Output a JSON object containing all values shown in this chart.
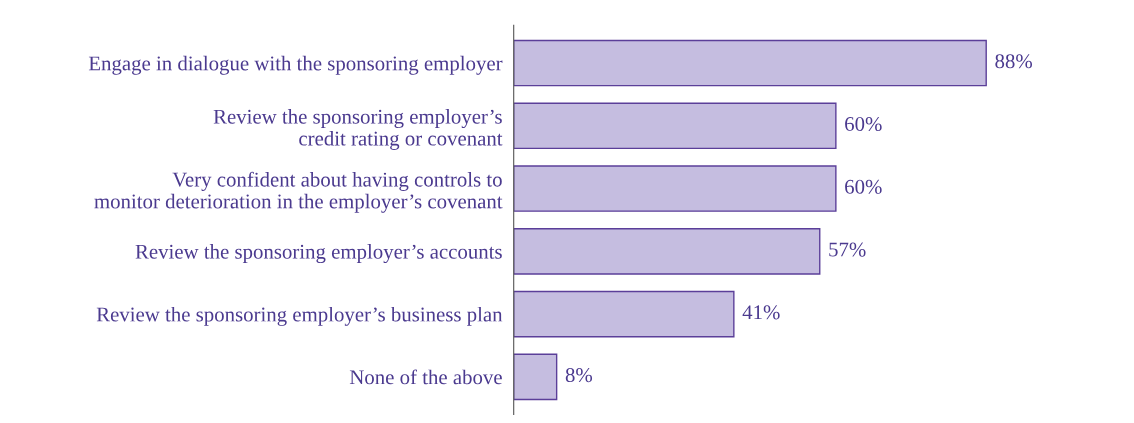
{
  "chart_data": {
    "type": "bar",
    "orientation": "horizontal",
    "categories": [
      "Engage in dialogue with the sponsoring employer",
      "Review the sponsoring employer’s\ncredit rating or covenant",
      "Very confident about having controls to\nmonitor deterioration in the employer’s covenant",
      "Review the sponsoring employer’s accounts",
      "Review the sponsoring employer’s business plan",
      "None of the above"
    ],
    "values": [
      88,
      60,
      60,
      57,
      41,
      8
    ],
    "value_labels": [
      "88%",
      "60%",
      "60%",
      "57%",
      "41%",
      "8%"
    ],
    "color": "#c5bde0"
  }
}
